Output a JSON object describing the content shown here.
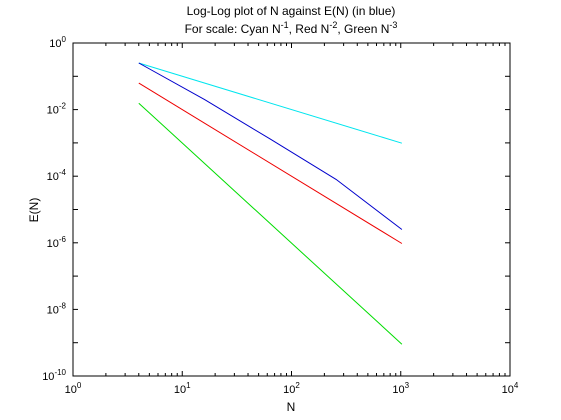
{
  "chart_data": {
    "type": "line",
    "title": "Log-Log plot of N against E(N) (in blue)",
    "subtitle": {
      "prefix": "For scale: ",
      "parts": [
        {
          "label": "Cyan N",
          "exp": "-1"
        },
        {
          "label": ", Red N",
          "exp": "-2"
        },
        {
          "label": ", Green N",
          "exp": "-3"
        }
      ]
    },
    "xlabel": "N",
    "ylabel": "E(N)",
    "xscale": "log",
    "yscale": "log",
    "xlim": [
      1,
      10000
    ],
    "ylim": [
      1e-10,
      1
    ],
    "xticks": [
      {
        "value": 1,
        "base": "10",
        "exp": "0"
      },
      {
        "value": 10,
        "base": "10",
        "exp": "1"
      },
      {
        "value": 100,
        "base": "10",
        "exp": "2"
      },
      {
        "value": 1000,
        "base": "10",
        "exp": "3"
      },
      {
        "value": 10000,
        "base": "10",
        "exp": "4"
      }
    ],
    "yticks": [
      {
        "value": 1,
        "base": "10",
        "exp": "0"
      },
      {
        "value": 0.01,
        "base": "10",
        "exp": "-2"
      },
      {
        "value": 0.0001,
        "base": "10",
        "exp": "-4"
      },
      {
        "value": 1e-06,
        "base": "10",
        "exp": "-6"
      },
      {
        "value": 1e-08,
        "base": "10",
        "exp": "-8"
      },
      {
        "value": 1e-10,
        "base": "10",
        "exp": "-10"
      }
    ],
    "grid": false,
    "series": [
      {
        "color": "#00e5ee",
        "x": [
          4,
          1024
        ],
        "y": [
          0.25,
          0.00098
        ]
      },
      {
        "color": "#0000cc",
        "x": [
          4,
          16,
          64,
          256,
          1024
        ],
        "y": [
          0.25,
          0.02,
          0.0013,
          8e-05,
          2.5e-06
        ]
      },
      {
        "color": "#ee0000",
        "x": [
          4,
          1024
        ],
        "y": [
          0.0625,
          9.5e-07
        ]
      },
      {
        "color": "#00dd00",
        "x": [
          4,
          1024
        ],
        "y": [
          0.0156,
          9e-10
        ]
      }
    ]
  }
}
